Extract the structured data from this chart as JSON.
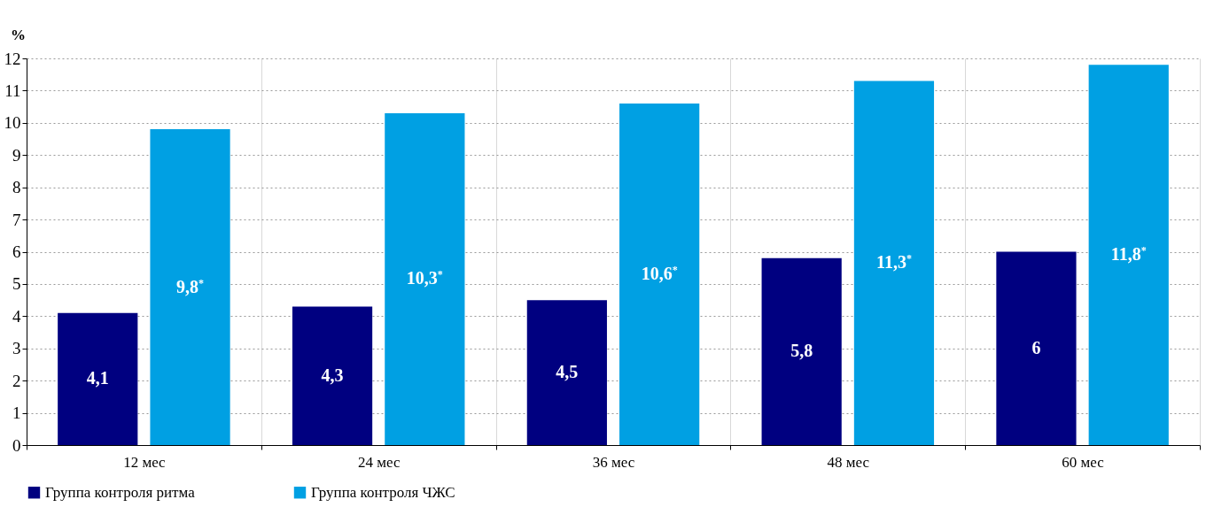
{
  "chart_data": {
    "type": "bar",
    "ylabel": "%",
    "categories": [
      "12 мес",
      "24 мес",
      "36 мес",
      "48 мес",
      "60 мес"
    ],
    "series": [
      {
        "name": "Группа контроля ритма",
        "color": "#000080",
        "values": [
          4.1,
          4.3,
          4.5,
          5.8,
          6
        ],
        "value_labels": [
          "4,1",
          "4,3",
          "4,5",
          "5,8",
          "6"
        ]
      },
      {
        "name": "Группа контроля ЧЖС",
        "color": "#00a0e3",
        "values": [
          9.8,
          10.3,
          10.6,
          11.3,
          11.8
        ],
        "value_labels": [
          "9,8$^{*}$",
          "10,3$^{*}$",
          "10,6$^{*}$",
          "11,3$^{*}$",
          "11,8$^{*}$"
        ]
      }
    ],
    "ylim": [
      0,
      12
    ],
    "yticks": [
      0,
      1,
      2,
      3,
      4,
      5,
      6,
      7,
      8,
      9,
      10,
      11,
      12
    ],
    "grid": true,
    "legend": "bottom"
  }
}
